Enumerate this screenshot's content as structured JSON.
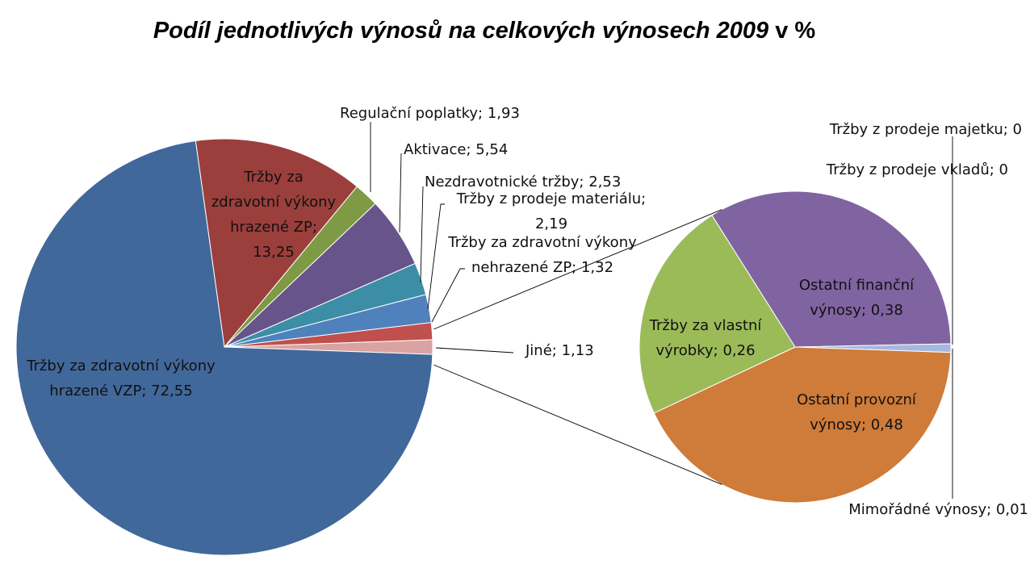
{
  "chart_data": {
    "type": "pie",
    "subtype": "pie-of-pie",
    "title": "Podíl jednotlivých výnosů na celkových výnosech 2009",
    "title_suffix": "v %",
    "main_pie": {
      "slices": [
        {
          "label": "Tržby za zdravotní výkony hrazené VZP",
          "value": 72.55,
          "value_text": "72,55",
          "color": "#41689a"
        },
        {
          "label": "Tržby za zdravotní výkony hrazené ZP",
          "value": 13.25,
          "value_text": "13,25",
          "color": "#9b3f3c"
        },
        {
          "label": "Regulační poplatky",
          "value": 1.93,
          "value_text": "1,93",
          "color": "#7f9a45"
        },
        {
          "label": "Aktivace",
          "value": 5.54,
          "value_text": "5,54",
          "color": "#67548a"
        },
        {
          "label": "Nezdravotnické tržby",
          "value": 2.53,
          "value_text": "2,53",
          "color": "#3b8ea5"
        },
        {
          "label": "Tržby z prodeje materiálu",
          "value": 2.19,
          "value_text": "2,19",
          "color": "#4f81bd"
        },
        {
          "label": "Tržby za zdravotní výkony nehrazené ZP",
          "value": 1.32,
          "value_text": "1,32",
          "color": "#c0504d"
        },
        {
          "label": "Jiné",
          "value": 1.13,
          "value_text": "1,13",
          "color": "#d9a3a2"
        }
      ]
    },
    "secondary_pie": {
      "source_slice": "Jiné",
      "slices": [
        {
          "label": "Ostatní finanční výnosy",
          "value": 0.38,
          "value_text": "0,38",
          "color": "#8064a2"
        },
        {
          "label": "Tržby z prodeje majetku",
          "value": 0,
          "value_text": "0",
          "color": "#8da0cb"
        },
        {
          "label": "Tržby z prodeje vkladů",
          "value": 0,
          "value_text": "0",
          "color": "#8da0cb"
        },
        {
          "label": "Mimořádné výnosy",
          "value": 0.01,
          "value_text": "0,01",
          "color": "#a5b8de"
        },
        {
          "label": "Ostatní provozní výnosy",
          "value": 0.48,
          "value_text": "0,48",
          "color": "#cf7b39"
        },
        {
          "label": "Tržby za vlastní výrobky",
          "value": 0.26,
          "value_text": "0,26",
          "color": "#9bbb59"
        }
      ]
    }
  }
}
